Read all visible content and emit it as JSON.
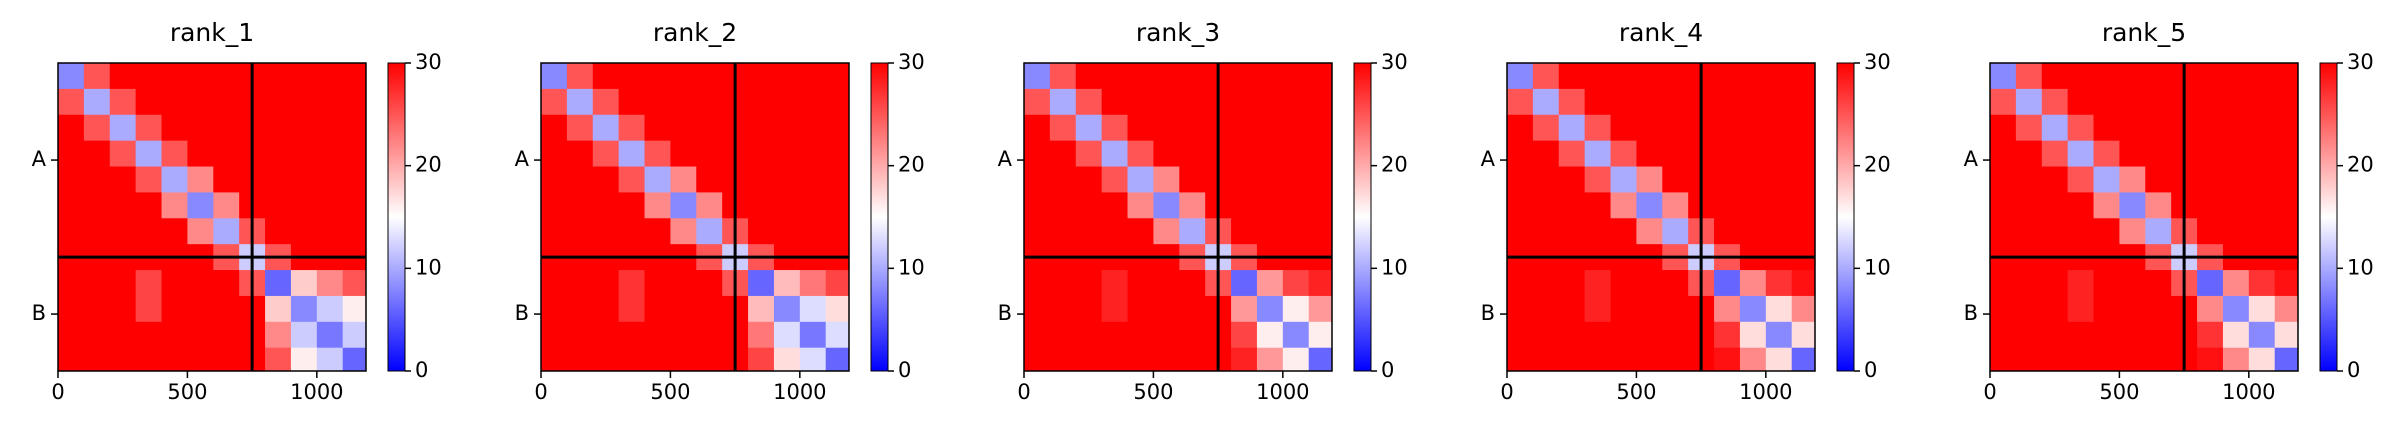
{
  "chart_data": [
    {
      "type": "heatmap",
      "title": "rank_1",
      "xlim": [
        0,
        1190
      ],
      "ylim": [
        1190,
        0
      ],
      "xticks": [
        0,
        500,
        1000
      ],
      "yticks": [
        {
          "value": 375,
          "label": "A"
        },
        {
          "value": 970,
          "label": "B"
        }
      ],
      "bins": [
        0,
        100,
        200,
        300,
        400,
        500,
        600,
        700,
        800,
        900,
        1000,
        1100,
        1190
      ],
      "chain_boundaries": [
        750
      ],
      "clim": [
        0,
        30
      ],
      "cticks": [
        0,
        10,
        20,
        30
      ],
      "colormap": [
        "#0000ff",
        "#ffffff",
        "#ff0000"
      ],
      "values": [
        [
          8,
          25,
          30,
          30,
          30,
          30,
          30,
          30,
          30,
          30,
          30,
          30
        ],
        [
          25,
          10,
          25,
          30,
          30,
          30,
          30,
          30,
          30,
          30,
          30,
          30
        ],
        [
          30,
          25,
          10,
          25,
          30,
          30,
          30,
          30,
          30,
          30,
          30,
          30
        ],
        [
          30,
          30,
          25,
          10,
          25,
          30,
          30,
          30,
          30,
          30,
          30,
          30
        ],
        [
          30,
          30,
          30,
          25,
          10,
          22,
          30,
          30,
          30,
          30,
          30,
          30
        ],
        [
          30,
          30,
          30,
          30,
          22,
          8,
          22,
          30,
          30,
          30,
          30,
          30
        ],
        [
          30,
          30,
          30,
          30,
          30,
          22,
          10,
          25,
          30,
          30,
          30,
          30
        ],
        [
          30,
          30,
          30,
          30,
          30,
          30,
          25,
          12,
          25,
          30,
          30,
          30
        ],
        [
          30,
          30,
          30,
          26,
          30,
          30,
          30,
          25,
          6,
          18,
          22,
          25
        ],
        [
          30,
          30,
          30,
          26,
          30,
          30,
          30,
          30,
          18,
          8,
          12,
          16
        ],
        [
          30,
          30,
          30,
          30,
          30,
          30,
          30,
          30,
          22,
          12,
          7,
          12
        ],
        [
          30,
          30,
          30,
          30,
          30,
          30,
          30,
          30,
          25,
          16,
          12,
          6
        ]
      ]
    },
    {
      "type": "heatmap",
      "title": "rank_2",
      "xlim": [
        0,
        1190
      ],
      "ylim": [
        1190,
        0
      ],
      "xticks": [
        0,
        500,
        1000
      ],
      "yticks": [
        {
          "value": 375,
          "label": "A"
        },
        {
          "value": 970,
          "label": "B"
        }
      ],
      "bins": [
        0,
        100,
        200,
        300,
        400,
        500,
        600,
        700,
        800,
        900,
        1000,
        1100,
        1190
      ],
      "chain_boundaries": [
        750
      ],
      "clim": [
        0,
        30
      ],
      "cticks": [
        0,
        10,
        20,
        30
      ],
      "colormap": [
        "#0000ff",
        "#ffffff",
        "#ff0000"
      ],
      "values": [
        [
          8,
          25,
          30,
          30,
          30,
          30,
          30,
          30,
          30,
          30,
          30,
          30
        ],
        [
          25,
          10,
          25,
          30,
          30,
          30,
          30,
          30,
          30,
          30,
          30,
          30
        ],
        [
          30,
          25,
          10,
          25,
          30,
          30,
          30,
          30,
          30,
          30,
          30,
          30
        ],
        [
          30,
          30,
          25,
          10,
          25,
          30,
          30,
          30,
          30,
          30,
          30,
          30
        ],
        [
          30,
          30,
          30,
          25,
          10,
          22,
          30,
          30,
          30,
          30,
          30,
          30
        ],
        [
          30,
          30,
          30,
          30,
          22,
          8,
          22,
          30,
          30,
          30,
          30,
          30
        ],
        [
          30,
          30,
          30,
          30,
          30,
          22,
          10,
          25,
          30,
          30,
          30,
          30
        ],
        [
          30,
          30,
          30,
          30,
          30,
          30,
          25,
          12,
          25,
          30,
          30,
          30
        ],
        [
          30,
          30,
          30,
          27,
          30,
          30,
          30,
          25,
          6,
          19,
          23,
          26
        ],
        [
          30,
          30,
          30,
          27,
          30,
          30,
          30,
          30,
          19,
          8,
          13,
          17
        ],
        [
          30,
          30,
          30,
          30,
          30,
          30,
          30,
          30,
          23,
          13,
          7,
          13
        ],
        [
          30,
          30,
          30,
          30,
          30,
          30,
          30,
          30,
          26,
          17,
          13,
          6
        ]
      ]
    },
    {
      "type": "heatmap",
      "title": "rank_3",
      "xlim": [
        0,
        1190
      ],
      "ylim": [
        1190,
        0
      ],
      "xticks": [
        0,
        500,
        1000
      ],
      "yticks": [
        {
          "value": 375,
          "label": "A"
        },
        {
          "value": 970,
          "label": "B"
        }
      ],
      "bins": [
        0,
        100,
        200,
        300,
        400,
        500,
        600,
        700,
        800,
        900,
        1000,
        1100,
        1190
      ],
      "chain_boundaries": [
        750
      ],
      "clim": [
        0,
        30
      ],
      "cticks": [
        0,
        10,
        20,
        30
      ],
      "colormap": [
        "#0000ff",
        "#ffffff",
        "#ff0000"
      ],
      "values": [
        [
          8,
          25,
          30,
          30,
          30,
          30,
          30,
          30,
          30,
          30,
          30,
          30
        ],
        [
          25,
          10,
          25,
          30,
          30,
          30,
          30,
          30,
          30,
          30,
          30,
          30
        ],
        [
          30,
          25,
          10,
          25,
          30,
          30,
          30,
          30,
          30,
          30,
          30,
          30
        ],
        [
          30,
          30,
          25,
          10,
          25,
          30,
          30,
          30,
          30,
          30,
          30,
          30
        ],
        [
          30,
          30,
          30,
          25,
          10,
          22,
          30,
          30,
          30,
          30,
          30,
          30
        ],
        [
          30,
          30,
          30,
          30,
          22,
          8,
          22,
          30,
          30,
          30,
          30,
          30
        ],
        [
          30,
          30,
          30,
          30,
          30,
          22,
          10,
          25,
          30,
          30,
          30,
          30
        ],
        [
          30,
          30,
          30,
          30,
          30,
          30,
          25,
          12,
          25,
          30,
          30,
          30
        ],
        [
          30,
          30,
          30,
          28,
          30,
          30,
          30,
          25,
          6,
          21,
          26,
          28
        ],
        [
          30,
          30,
          30,
          28,
          30,
          30,
          30,
          30,
          21,
          8,
          16,
          21
        ],
        [
          30,
          30,
          30,
          30,
          30,
          30,
          30,
          30,
          26,
          16,
          8,
          16
        ],
        [
          30,
          30,
          30,
          30,
          30,
          30,
          30,
          30,
          28,
          21,
          16,
          6
        ]
      ]
    },
    {
      "type": "heatmap",
      "title": "rank_4",
      "xlim": [
        0,
        1190
      ],
      "ylim": [
        1190,
        0
      ],
      "xticks": [
        0,
        500,
        1000
      ],
      "yticks": [
        {
          "value": 375,
          "label": "A"
        },
        {
          "value": 970,
          "label": "B"
        }
      ],
      "bins": [
        0,
        100,
        200,
        300,
        400,
        500,
        600,
        700,
        800,
        900,
        1000,
        1100,
        1190
      ],
      "chain_boundaries": [
        750
      ],
      "clim": [
        0,
        30
      ],
      "cticks": [
        0,
        10,
        20,
        30
      ],
      "colormap": [
        "#0000ff",
        "#ffffff",
        "#ff0000"
      ],
      "values": [
        [
          8,
          25,
          30,
          30,
          30,
          30,
          30,
          30,
          30,
          30,
          30,
          30
        ],
        [
          25,
          10,
          25,
          30,
          30,
          30,
          30,
          30,
          30,
          30,
          30,
          30
        ],
        [
          30,
          25,
          10,
          25,
          30,
          30,
          30,
          30,
          30,
          30,
          30,
          30
        ],
        [
          30,
          30,
          25,
          10,
          25,
          30,
          30,
          30,
          30,
          30,
          30,
          30
        ],
        [
          30,
          30,
          30,
          25,
          10,
          22,
          30,
          30,
          30,
          30,
          30,
          30
        ],
        [
          30,
          30,
          30,
          30,
          22,
          8,
          22,
          30,
          30,
          30,
          30,
          30
        ],
        [
          30,
          30,
          30,
          30,
          30,
          22,
          10,
          25,
          30,
          30,
          30,
          30
        ],
        [
          30,
          30,
          30,
          30,
          30,
          30,
          25,
          12,
          25,
          30,
          30,
          30
        ],
        [
          30,
          30,
          30,
          28,
          30,
          30,
          30,
          25,
          6,
          22,
          27,
          29
        ],
        [
          30,
          30,
          30,
          28,
          30,
          30,
          30,
          30,
          22,
          8,
          17,
          22
        ],
        [
          30,
          30,
          30,
          30,
          30,
          30,
          30,
          30,
          27,
          17,
          8,
          17
        ],
        [
          30,
          30,
          30,
          30,
          30,
          30,
          30,
          30,
          29,
          22,
          17,
          6
        ]
      ]
    },
    {
      "type": "heatmap",
      "title": "rank_5",
      "xlim": [
        0,
        1190
      ],
      "ylim": [
        1190,
        0
      ],
      "xticks": [
        0,
        500,
        1000
      ],
      "yticks": [
        {
          "value": 375,
          "label": "A"
        },
        {
          "value": 970,
          "label": "B"
        }
      ],
      "bins": [
        0,
        100,
        200,
        300,
        400,
        500,
        600,
        700,
        800,
        900,
        1000,
        1100,
        1190
      ],
      "chain_boundaries": [
        750
      ],
      "clim": [
        0,
        30
      ],
      "cticks": [
        0,
        10,
        20,
        30
      ],
      "colormap": [
        "#0000ff",
        "#ffffff",
        "#ff0000"
      ],
      "values": [
        [
          8,
          25,
          30,
          30,
          30,
          30,
          30,
          30,
          30,
          30,
          30,
          30
        ],
        [
          25,
          10,
          25,
          30,
          30,
          30,
          30,
          30,
          30,
          30,
          30,
          30
        ],
        [
          30,
          25,
          10,
          25,
          30,
          30,
          30,
          30,
          30,
          30,
          30,
          30
        ],
        [
          30,
          30,
          25,
          10,
          25,
          30,
          30,
          30,
          30,
          30,
          30,
          30
        ],
        [
          30,
          30,
          30,
          25,
          10,
          22,
          30,
          30,
          30,
          30,
          30,
          30
        ],
        [
          30,
          30,
          30,
          30,
          22,
          8,
          22,
          30,
          30,
          30,
          30,
          30
        ],
        [
          30,
          30,
          30,
          30,
          30,
          22,
          10,
          25,
          30,
          30,
          30,
          30
        ],
        [
          30,
          30,
          30,
          30,
          30,
          30,
          25,
          12,
          25,
          30,
          30,
          30
        ],
        [
          30,
          30,
          30,
          28,
          30,
          30,
          30,
          25,
          6,
          22,
          27,
          29
        ],
        [
          30,
          30,
          30,
          28,
          30,
          30,
          30,
          30,
          22,
          8,
          17,
          22
        ],
        [
          30,
          30,
          30,
          30,
          30,
          30,
          30,
          30,
          27,
          17,
          8,
          17
        ],
        [
          30,
          30,
          30,
          30,
          30,
          30,
          30,
          30,
          29,
          22,
          17,
          6
        ]
      ]
    }
  ]
}
